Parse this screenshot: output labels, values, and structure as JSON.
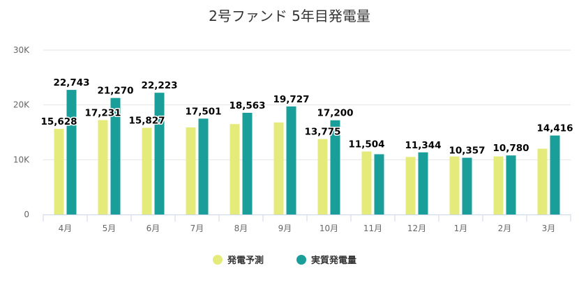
{
  "chart_data": {
    "type": "bar",
    "title": "2号ファンド 5年目発電量",
    "categories": [
      "4月",
      "5月",
      "6月",
      "7月",
      "8月",
      "9月",
      "10月",
      "11月",
      "12月",
      "1月",
      "2月",
      "3月"
    ],
    "y_ticks": [
      "0",
      "10K",
      "20K",
      "30K"
    ],
    "ylim": [
      0,
      30000
    ],
    "grid": true,
    "legend_position": "bottom",
    "series": [
      {
        "name": "発電予測",
        "color": "#e4eb7a",
        "values": [
          15628,
          17231,
          15827,
          15900,
          16500,
          16800,
          13775,
          11504,
          10500,
          10600,
          10600,
          12000
        ],
        "labels": [
          "15,628",
          "17,231",
          "15,827",
          "",
          "",
          "",
          "13,775",
          "11,504",
          "",
          "",
          "",
          ""
        ]
      },
      {
        "name": "実質発電量",
        "color": "#1a9e9a",
        "values": [
          22743,
          21270,
          22223,
          17501,
          18563,
          19727,
          17200,
          11000,
          11344,
          10357,
          10780,
          14416
        ],
        "labels": [
          "22,743",
          "21,270",
          "22,223",
          "17,501",
          "18,563",
          "19,727",
          "17,200",
          "",
          "11,344",
          "10,357",
          "10,780",
          "14,416"
        ]
      }
    ]
  }
}
